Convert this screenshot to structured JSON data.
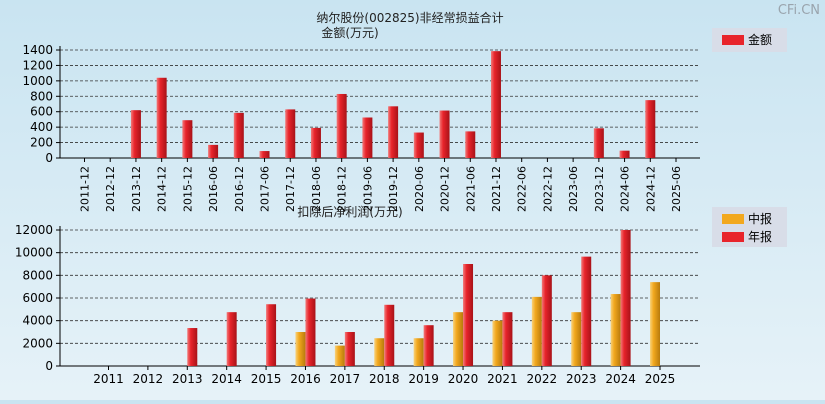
{
  "watermark": "CFi.CN",
  "colors": {
    "annual": "#e8242b",
    "interim": "#f2a81e",
    "legend_bg": "#d8dde8"
  },
  "chart_data": [
    {
      "type": "bar",
      "title": "纳尔股份(002825)非经常损益合计",
      "subtitle": "金额(万元)",
      "legend": [
        {
          "name": "金额",
          "color": "#e8242b"
        }
      ],
      "legend_position": "top-right",
      "ylim": [
        0,
        1400
      ],
      "yticks": [
        0,
        200,
        400,
        600,
        800,
        1000,
        1200,
        1400
      ],
      "grid": true,
      "categories": [
        "2011-12",
        "2012-12",
        "2013-12",
        "2014-12",
        "2015-12",
        "2016-06",
        "2016-12",
        "2017-06",
        "2017-12",
        "2018-06",
        "2018-12",
        "2019-06",
        "2019-12",
        "2020-06",
        "2020-12",
        "2021-06",
        "2021-12",
        "2022-06",
        "2022-12",
        "2023-06",
        "2023-12",
        "2024-06",
        "2024-12",
        "2025-06"
      ],
      "values": [
        null,
        null,
        620,
        1040,
        490,
        170,
        585,
        90,
        630,
        390,
        830,
        525,
        670,
        330,
        615,
        345,
        1385,
        null,
        null,
        null,
        385,
        95,
        750,
        null
      ]
    },
    {
      "type": "bar",
      "title": "扣除后净利润(万元)",
      "legend": [
        {
          "name": "中报",
          "color": "#f2a81e"
        },
        {
          "name": "年报",
          "color": "#e8242b"
        }
      ],
      "legend_position": "top-right",
      "ylim": [
        0,
        12000
      ],
      "yticks": [
        0,
        2000,
        4000,
        6000,
        8000,
        10000,
        12000
      ],
      "grid": true,
      "categories": [
        "2011",
        "2012",
        "2013",
        "2014",
        "2015",
        "2016",
        "2017",
        "2018",
        "2019",
        "2020",
        "2021",
        "2022",
        "2023",
        "2024",
        "2025"
      ],
      "series": [
        {
          "name": "中报",
          "values": [
            null,
            null,
            null,
            null,
            null,
            3000,
            1800,
            2450,
            2450,
            4750,
            4000,
            6100,
            4750,
            6350,
            7400
          ]
        },
        {
          "name": "年报",
          "values": [
            null,
            null,
            3350,
            4750,
            5450,
            5950,
            3000,
            5400,
            3600,
            9000,
            4750,
            8000,
            9650,
            12000,
            null
          ]
        }
      ]
    }
  ]
}
